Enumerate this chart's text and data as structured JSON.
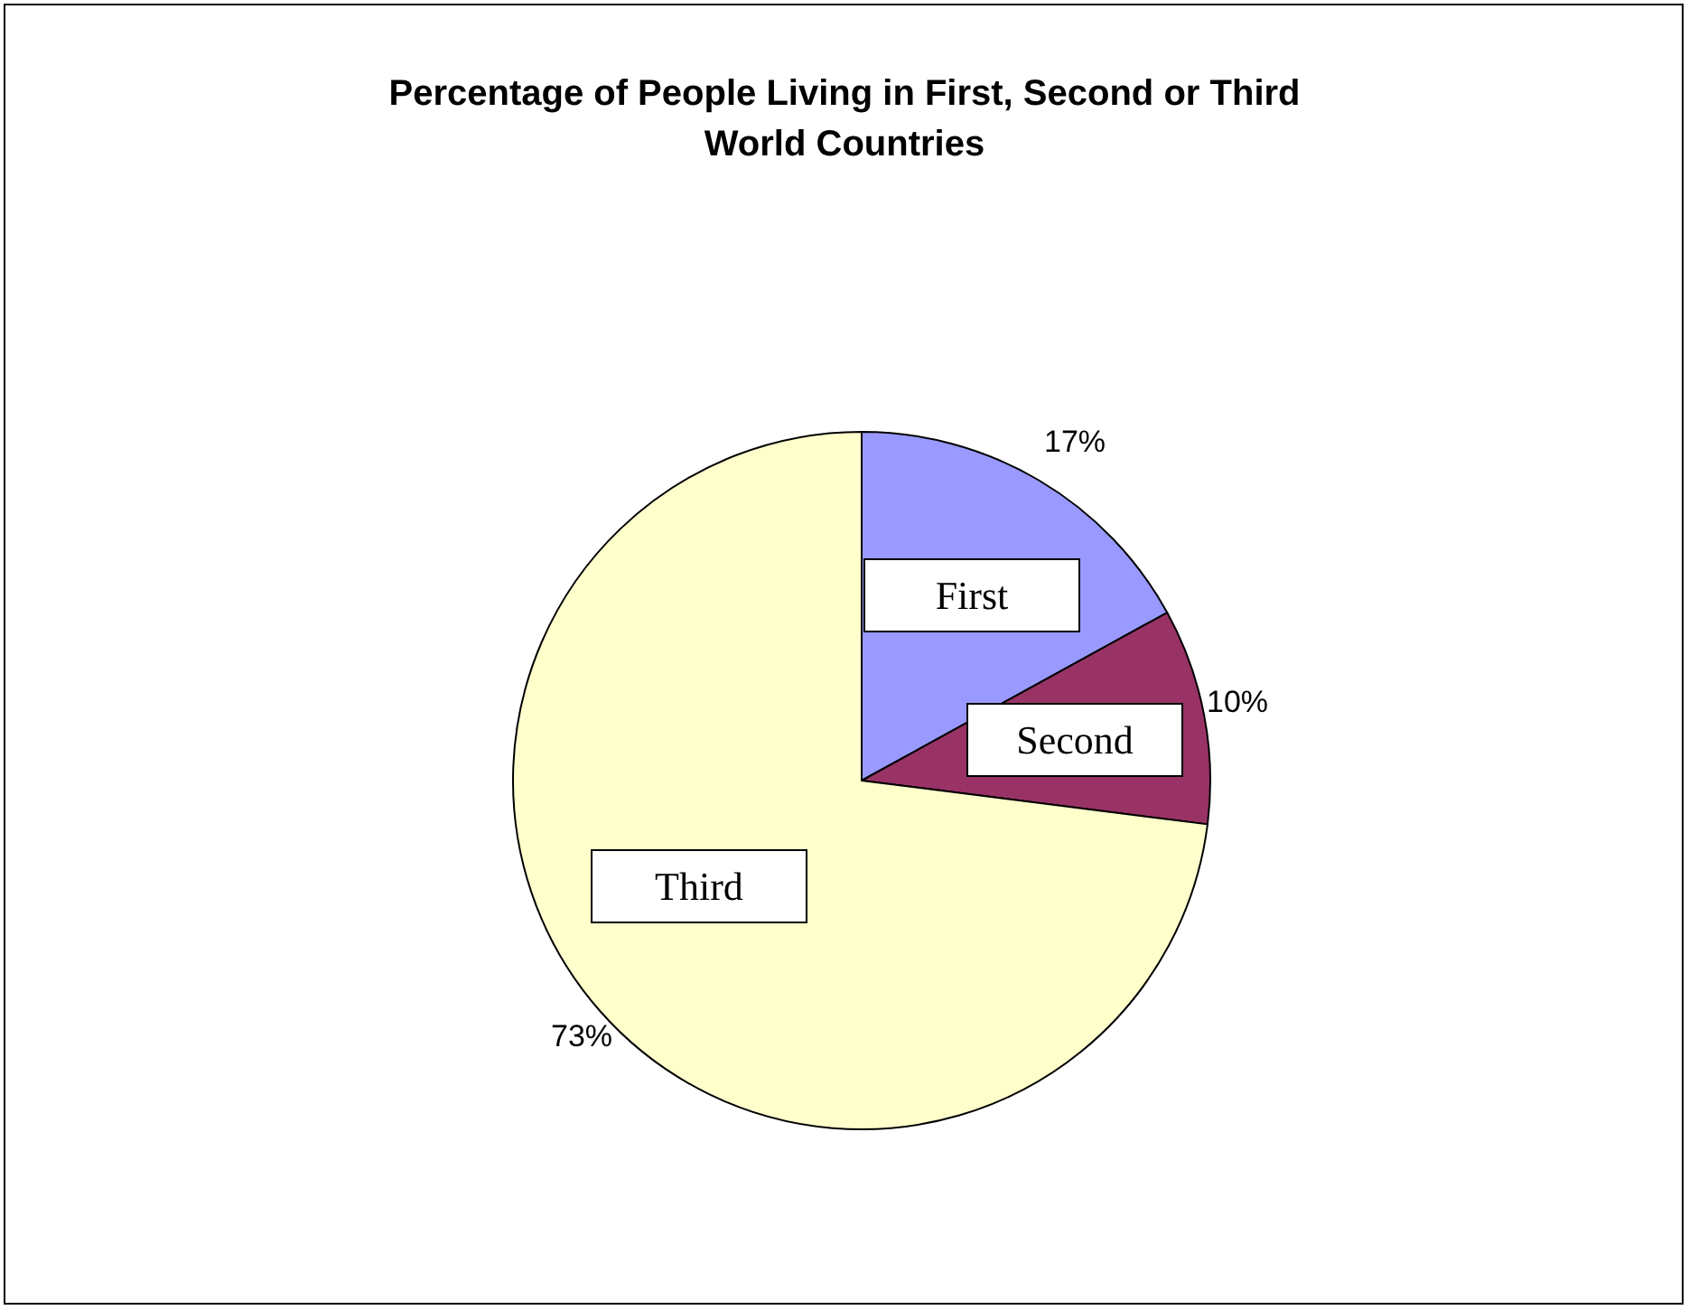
{
  "chart_data": {
    "type": "pie",
    "title": "Percentage of People Living in First, Second or Third World Countries",
    "categories": [
      "First",
      "Second",
      "Third"
    ],
    "values": [
      17,
      10,
      73
    ],
    "colors": [
      "#9999ff",
      "#993366",
      "#ffffcc"
    ],
    "value_labels": [
      "17%",
      "10%",
      "73%"
    ],
    "legend": false
  }
}
